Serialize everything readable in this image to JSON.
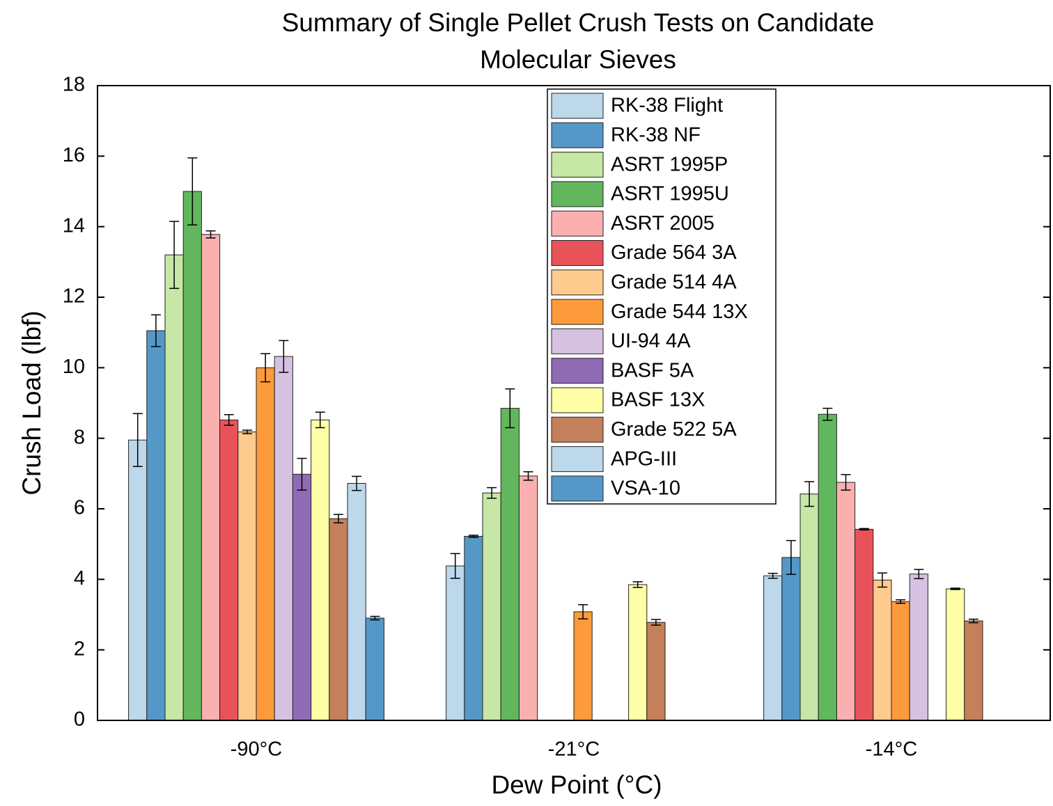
{
  "chart_data": {
    "type": "bar",
    "title": [
      "Summary of Single Pellet Crush Tests on Candidate",
      "Molecular Sieves"
    ],
    "x_label": "Dew Point (°C)",
    "y_label": "Crush Load (lbf)",
    "categories": [
      "-90°C",
      "-21°C",
      "-14°C"
    ],
    "ylim": [
      0,
      18
    ],
    "yticks": [
      0,
      2,
      4,
      6,
      8,
      10,
      12,
      14,
      16,
      18
    ],
    "legend": "top-right",
    "series": [
      {
        "name": "RK-38 Flight",
        "color": "#bcd8ea",
        "values": [
          7.95,
          4.38,
          4.1
        ],
        "errors": [
          0.75,
          0.35,
          0.07
        ]
      },
      {
        "name": "RK-38 NF",
        "color": "#5598c8",
        "values": [
          11.05,
          5.22,
          4.62
        ],
        "errors": [
          0.45,
          0.03,
          0.48
        ]
      },
      {
        "name": "ASRT 1995P",
        "color": "#c6e7a6",
        "values": [
          13.2,
          6.45,
          6.42
        ],
        "errors": [
          0.95,
          0.15,
          0.35
        ]
      },
      {
        "name": "ASRT 1995U",
        "color": "#62b75e",
        "values": [
          15.0,
          8.85,
          8.68
        ],
        "errors": [
          0.95,
          0.55,
          0.17
        ]
      },
      {
        "name": "ASRT 2005",
        "color": "#fbb0b0",
        "values": [
          13.78,
          6.93,
          6.75
        ],
        "errors": [
          0.1,
          0.12,
          0.22
        ]
      },
      {
        "name": "Grade 564 3A",
        "color": "#e8535a",
        "values": [
          8.52,
          null,
          5.42
        ],
        "errors": [
          0.15,
          null,
          0.02
        ]
      },
      {
        "name": "Grade 514 4A",
        "color": "#fdcb8e",
        "values": [
          8.18,
          null,
          3.98
        ],
        "errors": [
          0.05,
          null,
          0.2
        ]
      },
      {
        "name": "Grade 544 13X",
        "color": "#fd9a3c",
        "values": [
          10.0,
          3.08,
          3.37
        ],
        "errors": [
          0.4,
          0.2,
          0.05
        ]
      },
      {
        "name": "UI-94 4A",
        "color": "#d6c2e0",
        "values": [
          10.32,
          null,
          4.15
        ],
        "errors": [
          0.45,
          null,
          0.13
        ]
      },
      {
        "name": "BASF 5A",
        "color": "#8f6bb5",
        "values": [
          6.98,
          null,
          null
        ],
        "errors": [
          0.45,
          null,
          null
        ]
      },
      {
        "name": "BASF 13X",
        "color": "#ffffa8",
        "values": [
          8.52,
          3.85,
          3.73
        ],
        "errors": [
          0.22,
          0.08,
          0.02
        ]
      },
      {
        "name": "Grade 522 5A",
        "color": "#c4805a",
        "values": [
          5.72,
          2.78,
          2.82
        ],
        "errors": [
          0.12,
          0.08,
          0.05
        ]
      },
      {
        "name": "APG-III",
        "color": "#bcd8ea",
        "values": [
          6.72,
          null,
          null
        ],
        "errors": [
          0.2,
          null,
          null
        ]
      },
      {
        "name": "VSA-10",
        "color": "#5598c8",
        "values": [
          2.9,
          null,
          null
        ],
        "errors": [
          0.05,
          null,
          null
        ]
      }
    ]
  }
}
